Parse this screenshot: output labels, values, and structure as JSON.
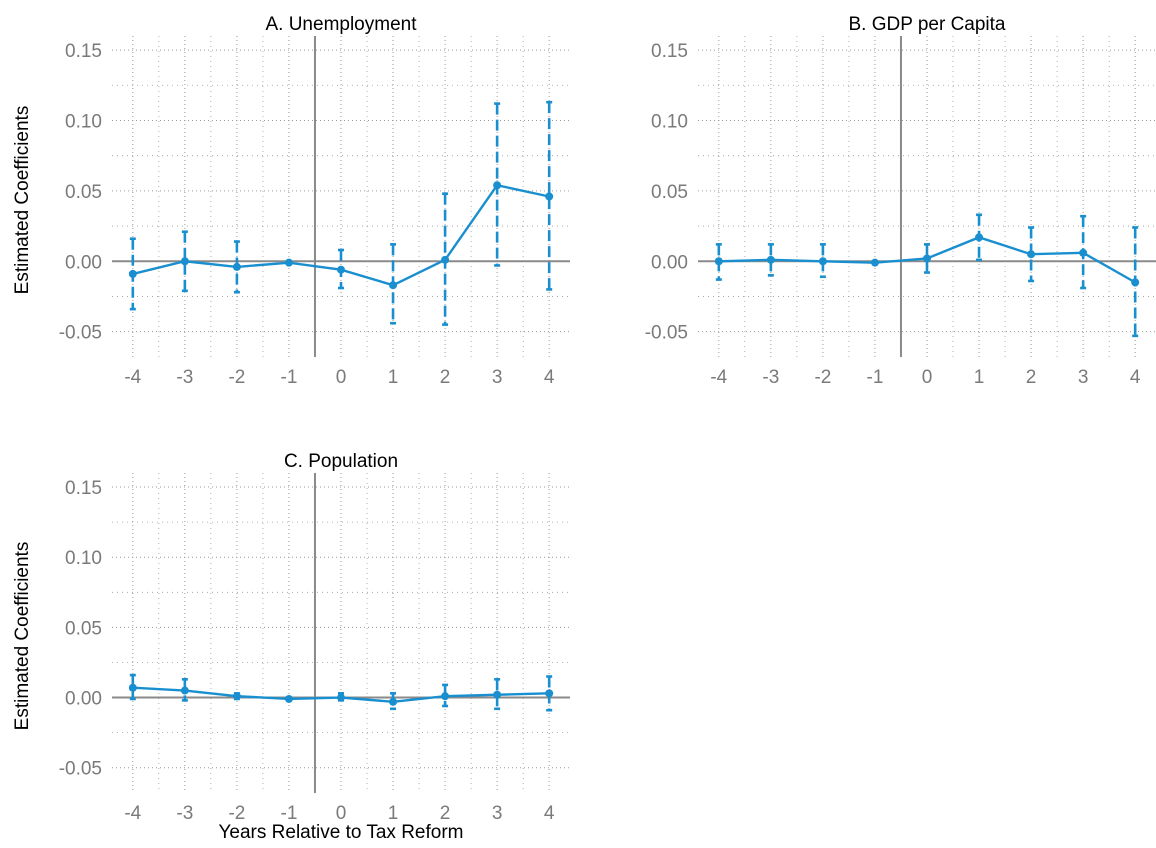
{
  "colors": {
    "series": "#1a8fcf",
    "reference_line": "#8a8a8a",
    "grid": "#9a9a9a",
    "tick_text": "#7a7a7a"
  },
  "chart_data": [
    {
      "type": "line",
      "title": "A. Unemployment",
      "ylabel": "Estimated Coefficients",
      "xlabel": "",
      "x": [
        -4,
        -3,
        -2,
        -1,
        0,
        1,
        2,
        3,
        4
      ],
      "x_tick_labels": [
        "-4",
        "-3",
        "-2",
        "-1",
        "0",
        "1",
        "2",
        "3",
        "4"
      ],
      "y_tick_labels": [
        "-0.05",
        "0.00",
        "0.05",
        "0.10",
        "0.15"
      ],
      "y": [
        -0.009,
        0.0,
        -0.004,
        -0.001,
        -0.006,
        -0.017,
        0.001,
        0.054,
        0.046
      ],
      "ci_low": [
        -0.034,
        -0.021,
        -0.022,
        -0.001,
        -0.019,
        -0.044,
        -0.045,
        -0.003,
        -0.02
      ],
      "ci_high": [
        0.016,
        0.021,
        0.014,
        -0.001,
        0.008,
        0.012,
        0.048,
        0.112,
        0.113
      ],
      "ylim": [
        -0.068,
        0.16
      ],
      "xlim": [
        -4.4,
        4.4
      ],
      "event_line_x": -0.5,
      "zero_line": true,
      "grid": true
    },
    {
      "type": "line",
      "title": "B. GDP per Capita",
      "ylabel": "",
      "xlabel": "",
      "x": [
        -4,
        -3,
        -2,
        -1,
        0,
        1,
        2,
        3,
        4
      ],
      "x_tick_labels": [
        "-4",
        "-3",
        "-2",
        "-1",
        "0",
        "1",
        "2",
        "3",
        "4"
      ],
      "y_tick_labels": [
        "-0.05",
        "0.00",
        "0.05",
        "0.10",
        "0.15"
      ],
      "y": [
        0.0,
        0.001,
        0.0,
        -0.001,
        0.002,
        0.017,
        0.005,
        0.006,
        -0.015
      ],
      "ci_low": [
        -0.013,
        -0.01,
        -0.011,
        -0.001,
        -0.008,
        0.001,
        -0.014,
        -0.019,
        -0.053
      ],
      "ci_high": [
        0.012,
        0.012,
        0.012,
        -0.001,
        0.012,
        0.033,
        0.024,
        0.032,
        0.024
      ],
      "ylim": [
        -0.068,
        0.16
      ],
      "xlim": [
        -4.4,
        4.4
      ],
      "event_line_x": -0.5,
      "zero_line": true,
      "grid": true
    },
    {
      "type": "line",
      "title": "C. Population",
      "ylabel": "Estimated Coefficients",
      "xlabel": "Years Relative to Tax Reform",
      "x": [
        -4,
        -3,
        -2,
        -1,
        0,
        1,
        2,
        3,
        4
      ],
      "x_tick_labels": [
        "-4",
        "-3",
        "-2",
        "-1",
        "0",
        "1",
        "2",
        "3",
        "4"
      ],
      "y_tick_labels": [
        "-0.05",
        "0.00",
        "0.05",
        "0.10",
        "0.15"
      ],
      "y": [
        0.007,
        0.005,
        0.001,
        -0.001,
        0.0,
        -0.003,
        0.001,
        0.002,
        0.003
      ],
      "ci_low": [
        -0.001,
        -0.002,
        -0.001,
        -0.001,
        -0.002,
        -0.008,
        -0.006,
        -0.008,
        -0.009
      ],
      "ci_high": [
        0.016,
        0.013,
        0.003,
        -0.001,
        0.003,
        0.003,
        0.009,
        0.013,
        0.015
      ],
      "ylim": [
        -0.068,
        0.16
      ],
      "xlim": [
        -4.4,
        4.4
      ],
      "event_line_x": -0.5,
      "zero_line": true,
      "grid": true
    }
  ]
}
